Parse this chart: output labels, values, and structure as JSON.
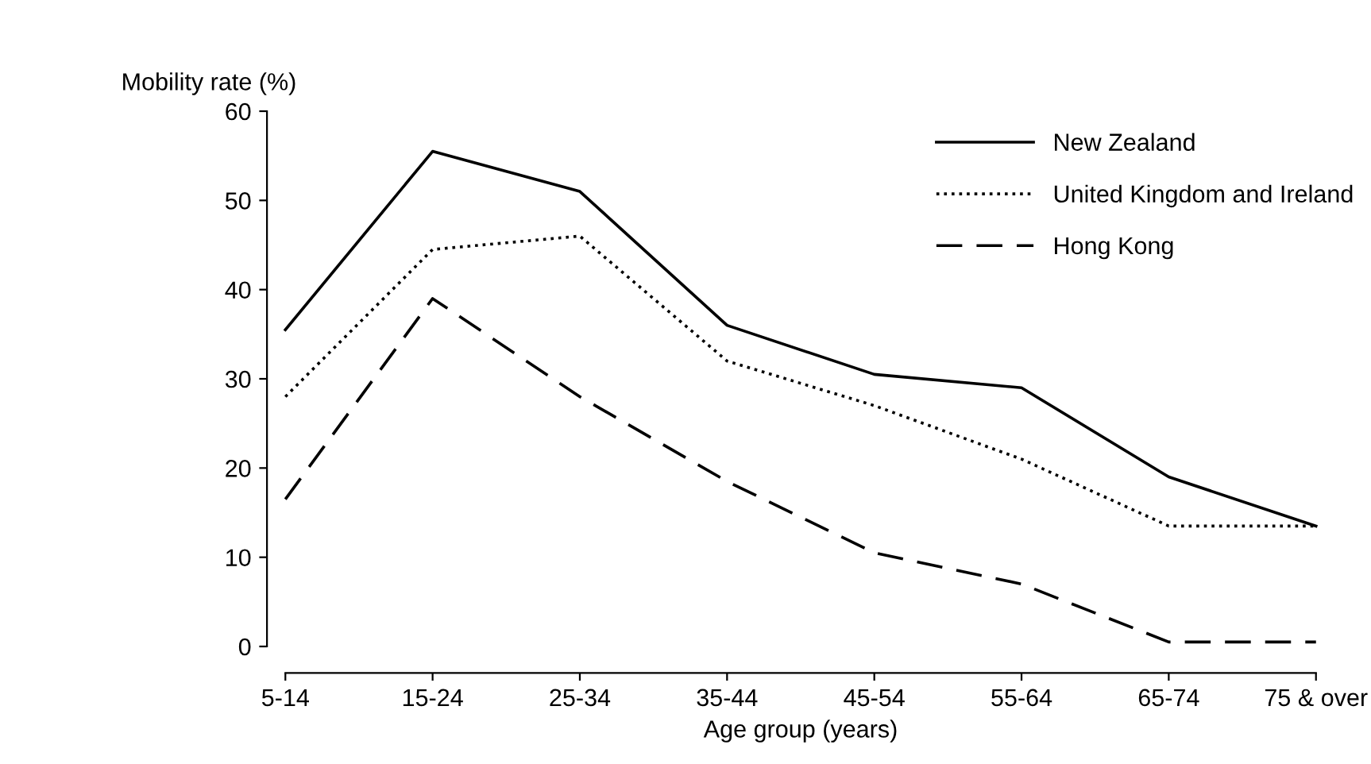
{
  "chart_data": {
    "type": "line",
    "ylabel": "Mobility rate (%)",
    "xlabel": "Age group (years)",
    "categories": [
      "5-14",
      "15-24",
      "25-34",
      "35-44",
      "45-54",
      "55-64",
      "65-74",
      "75 & over"
    ],
    "ylim": [
      0,
      60
    ],
    "yticks": [
      0,
      10,
      20,
      30,
      40,
      50,
      60
    ],
    "grid": false,
    "legend": "top right",
    "marker": "none",
    "series": [
      {
        "name": "New Zealand",
        "color": "#000000",
        "line_style": "solid",
        "values": [
          35.5,
          55.5,
          51,
          36,
          30.5,
          29,
          19,
          13.5
        ]
      },
      {
        "name": "United Kingdom and Ireland",
        "color": "#000000",
        "line_style": "dotted",
        "values": [
          28,
          44.5,
          46,
          32,
          27,
          21,
          13.5,
          13.5
        ]
      },
      {
        "name": "Hong Kong",
        "color": "#000000",
        "line_style": "dashed",
        "values": [
          16.5,
          39,
          28,
          18.5,
          10.5,
          7,
          0.5,
          0.5
        ]
      }
    ]
  }
}
